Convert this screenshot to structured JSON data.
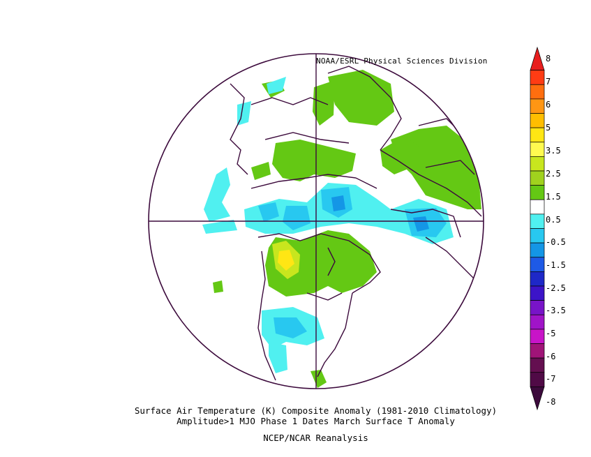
{
  "header": {
    "credit": "NOAA/ESRL Physical Sciences Division"
  },
  "captions": {
    "line1": "Surface Air Temperature (K) Composite Anomaly (1981-2010 Climatology)",
    "line2": "Amplitude>1 MJO Phase 1 Dates March Surface T Anomaly",
    "line3": "NCEP/NCAR Reanalysis"
  },
  "colorbar": {
    "labels": [
      "8",
      "7",
      "6",
      "5",
      "3.5",
      "2.5",
      "1.5",
      "0.5",
      "-0.5",
      "-1.5",
      "-2.5",
      "-3.5",
      "-5",
      "-6",
      "-7",
      "-8"
    ],
    "colors": [
      "#e81e1e",
      "#ff3c14",
      "#ff6e0f",
      "#ff9614",
      "#ffbe00",
      "#ffe614",
      "#fffa50",
      "#c8e61e",
      "#a0d21e",
      "#64c814",
      "#ffffff",
      "#50f0f0",
      "#28c8f0",
      "#1496e6",
      "#1e5ae6",
      "#1e28c8",
      "#3c14c8",
      "#7814c8",
      "#a014c8",
      "#c814c8",
      "#a01478",
      "#640f50",
      "#500a46",
      "#3c0a3c"
    ]
  },
  "legend_colors": {
    "land_outline": "#3c0a3c",
    "warm_green": "#64c814",
    "warm_yellow": "#fffa50",
    "cool_cyan": "#50f0f0",
    "cool_blue": "#28c8f0",
    "cool_deep": "#1496e6"
  }
}
